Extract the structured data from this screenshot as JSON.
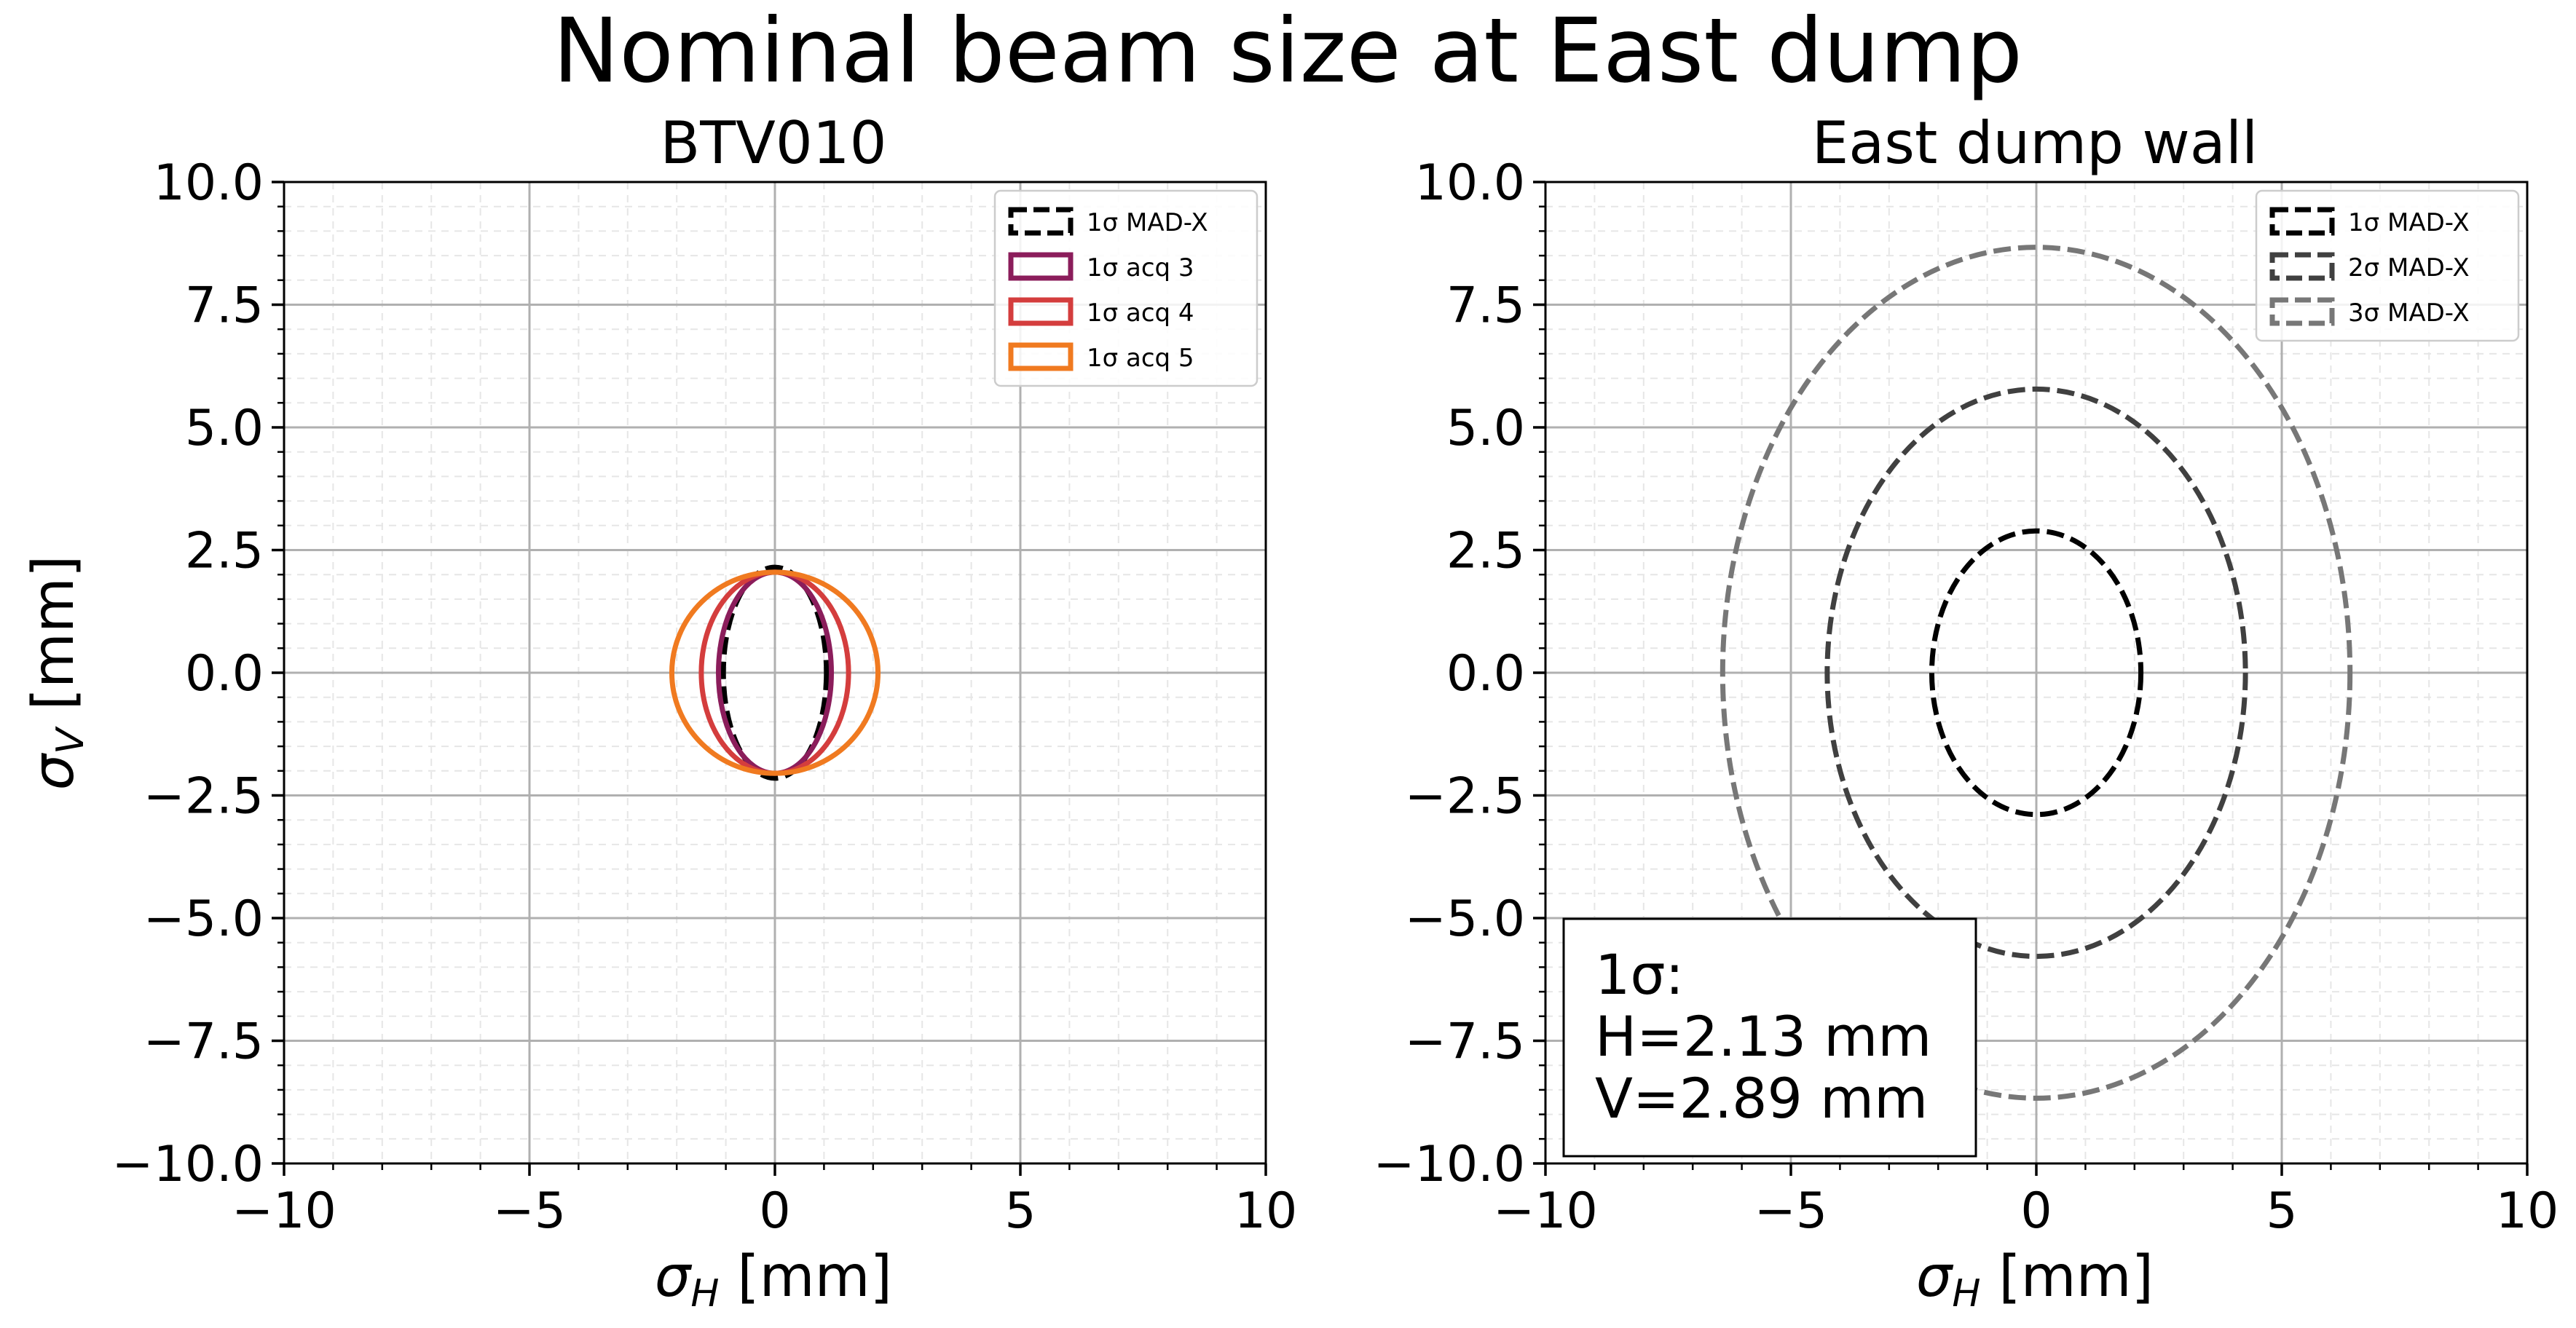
{
  "figure": {
    "title": "Nominal beam size at East dump"
  },
  "chart_data": [
    {
      "type": "ellipse",
      "title": "BTV010",
      "xlabel": "σ_H [mm]",
      "ylabel": "σ_V [mm]",
      "xlim": [
        -10,
        10
      ],
      "ylim": [
        -10,
        10
      ],
      "xticks": [
        -10,
        -5,
        0,
        5,
        10
      ],
      "yticks": [
        -10.0,
        -7.5,
        -5.0,
        -2.5,
        0.0,
        2.5,
        5.0,
        7.5,
        10.0
      ],
      "grid": true,
      "minor_grid": true,
      "legend_position": "top-right",
      "series": [
        {
          "name": "1σ MAD-X",
          "center": [
            0,
            0
          ],
          "sigma_h": 1.05,
          "sigma_v": 2.15,
          "color": "#000000",
          "style": "dashed"
        },
        {
          "name": "1σ acq 3",
          "center": [
            0,
            0
          ],
          "sigma_h": 1.15,
          "sigma_v": 2.05,
          "color": "#8b1d5b",
          "style": "solid"
        },
        {
          "name": "1σ acq 4",
          "center": [
            0,
            0
          ],
          "sigma_h": 1.5,
          "sigma_v": 2.05,
          "color": "#d43d3d",
          "style": "solid"
        },
        {
          "name": "1σ acq 5",
          "center": [
            0,
            0
          ],
          "sigma_h": 2.1,
          "sigma_v": 2.05,
          "color": "#f07a20",
          "style": "solid"
        }
      ]
    },
    {
      "type": "ellipse",
      "title": "East dump wall",
      "xlabel": "σ_H [mm]",
      "ylabel": "",
      "xlim": [
        -10,
        10
      ],
      "ylim": [
        -10,
        10
      ],
      "xticks": [
        -10,
        -5,
        0,
        5,
        10
      ],
      "yticks": [
        -10.0,
        -7.5,
        -5.0,
        -2.5,
        0.0,
        2.5,
        5.0,
        7.5,
        10.0
      ],
      "grid": true,
      "minor_grid": true,
      "legend_position": "top-right",
      "series": [
        {
          "name": "1σ MAD-X",
          "center": [
            0,
            0
          ],
          "sigma_h": 2.13,
          "sigma_v": 2.89,
          "color": "#000000",
          "style": "dashed"
        },
        {
          "name": "2σ MAD-X",
          "center": [
            0,
            0
          ],
          "sigma_h": 4.26,
          "sigma_v": 5.78,
          "color": "#404040",
          "style": "dashed"
        },
        {
          "name": "3σ MAD-X",
          "center": [
            0,
            0
          ],
          "sigma_h": 6.39,
          "sigma_v": 8.67,
          "color": "#777777",
          "style": "dashed"
        }
      ],
      "annotation": {
        "line1": "1σ:",
        "line2": "H=2.13 mm",
        "line3": "V=2.89 mm"
      }
    }
  ]
}
